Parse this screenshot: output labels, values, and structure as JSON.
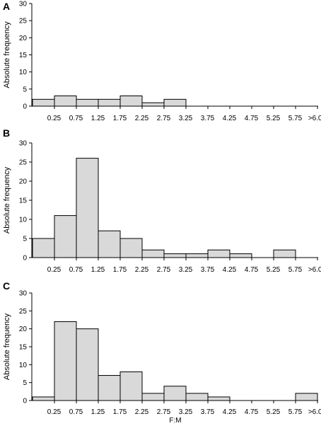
{
  "chart_data": [
    {
      "type": "bar",
      "panel": "A",
      "categories": [
        "0.25",
        "0.75",
        "1.25",
        "1.75",
        "2.25",
        "2.75",
        "3.25",
        "3.75",
        "4.25",
        "4.75",
        "5.25",
        "5.75",
        ">6.00"
      ],
      "values": [
        2,
        3,
        2,
        2,
        3,
        1,
        2,
        0,
        0,
        0,
        0,
        0,
        0
      ],
      "ylabel": "Absolute frequency",
      "xlabel": "",
      "ylim": [
        0,
        30
      ],
      "yticks": [
        0,
        5,
        10,
        15,
        20,
        25,
        30
      ]
    },
    {
      "type": "bar",
      "panel": "B",
      "categories": [
        "0.25",
        "0.75",
        "1.25",
        "1.75",
        "2.25",
        "2.75",
        "3.25",
        "3.75",
        "4.25",
        "4.75",
        "5.25",
        "5.75",
        ">6.00"
      ],
      "values": [
        5,
        11,
        26,
        7,
        5,
        2,
        1,
        1,
        2,
        1,
        0,
        2,
        0
      ],
      "ylabel": "Absolute frequency",
      "xlabel": "",
      "ylim": [
        0,
        30
      ],
      "yticks": [
        0,
        5,
        10,
        15,
        20,
        25,
        30
      ]
    },
    {
      "type": "bar",
      "panel": "C",
      "categories": [
        "0.25",
        "0.75",
        "1.25",
        "1.75",
        "2.25",
        "2.75",
        "3.25",
        "3.75",
        "4.25",
        "4.75",
        "5.25",
        "5.75",
        ">6.00"
      ],
      "values": [
        1,
        22,
        20,
        7,
        8,
        2,
        4,
        2,
        1,
        0,
        0,
        0,
        2
      ],
      "ylabel": "Absolute frequency",
      "xlabel": "F:M",
      "ylim": [
        0,
        30
      ],
      "yticks": [
        0,
        5,
        10,
        15,
        20,
        25,
        30
      ]
    }
  ]
}
